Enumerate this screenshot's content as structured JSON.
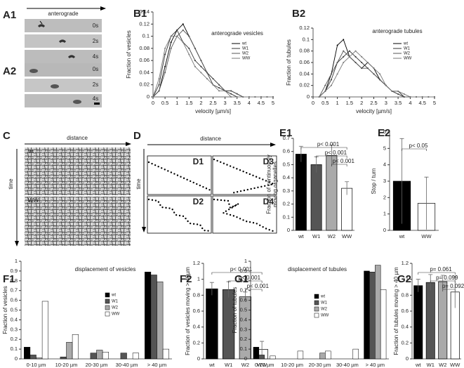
{
  "figure": {
    "panel_labels": [
      "A1",
      "A2",
      "B1",
      "B2",
      "C",
      "D",
      "E1",
      "E2",
      "F1",
      "F2",
      "G1",
      "G2"
    ],
    "a_direction": "anterograde",
    "a1_times": [
      "0s",
      "2s",
      "4s"
    ],
    "a2_times": [
      "0s",
      "2s",
      "4s"
    ],
    "c_x_axis": "distance",
    "c_y_axis": "time",
    "c_rows": [
      "wt",
      "WW"
    ],
    "d_x_axis": "distance",
    "d_y_axis": "time",
    "d_boxes": [
      "D1",
      "D3",
      "D2",
      "D4"
    ]
  },
  "chart_data": [
    {
      "type": "line",
      "title": "anterograde vesicles",
      "xlabel": "velocity [µm/s]",
      "ylabel": [
        "Fraction of vesicles"
      ],
      "x": [
        0,
        0.25,
        0.5,
        0.75,
        1,
        1.25,
        1.5,
        1.75,
        2,
        2.25,
        2.5,
        2.75,
        3,
        3.25,
        3.5,
        3.75,
        4,
        4.25,
        4.5,
        4.75,
        5
      ],
      "series": [
        {
          "name": "wt",
          "color": "#000000",
          "values": [
            0,
            0.01,
            0.05,
            0.09,
            0.11,
            0.12,
            0.1,
            0.08,
            0.06,
            0.04,
            0.03,
            0.02,
            0.01,
            0.01,
            0.005,
            0,
            0,
            0,
            0,
            0,
            0
          ]
        },
        {
          "name": "W1",
          "color": "#333333",
          "values": [
            0,
            0.02,
            0.07,
            0.1,
            0.11,
            0.09,
            0.08,
            0.06,
            0.05,
            0.04,
            0.02,
            0.015,
            0.01,
            0.005,
            0,
            0,
            0,
            0,
            0,
            0,
            0
          ]
        },
        {
          "name": "W2",
          "color": "#555555",
          "values": [
            0,
            0.01,
            0.04,
            0.08,
            0.1,
            0.11,
            0.1,
            0.08,
            0.06,
            0.04,
            0.03,
            0.02,
            0.01,
            0.01,
            0.005,
            0,
            0,
            0,
            0,
            0,
            0
          ]
        },
        {
          "name": "WW",
          "color": "#777777",
          "values": [
            0,
            0.03,
            0.08,
            0.1,
            0.1,
            0.09,
            0.07,
            0.05,
            0.04,
            0.03,
            0.02,
            0.01,
            0.01,
            0,
            0,
            0,
            0,
            0,
            0,
            0,
            0
          ]
        }
      ],
      "xlim": [
        0,
        5
      ],
      "xticks": [
        0,
        0.5,
        1,
        1.5,
        2,
        2.5,
        3,
        3.5,
        4,
        4.5,
        5
      ],
      "ylim": [
        0,
        0.14
      ],
      "yticks": [
        0,
        0.02,
        0.04,
        0.06,
        0.08,
        0.1,
        0.12,
        0.14
      ],
      "legend": true
    },
    {
      "type": "line",
      "title": "anterograde tubules",
      "xlabel": "velocity [µm/s]",
      "ylabel": [
        "Fraction of tubules"
      ],
      "x": [
        0,
        0.25,
        0.5,
        0.75,
        1,
        1.25,
        1.5,
        1.75,
        2,
        2.25,
        2.5,
        2.75,
        3,
        3.25,
        3.5,
        3.75,
        4,
        4.25,
        4.5,
        4.75,
        5
      ],
      "series": [
        {
          "name": "wt",
          "color": "#000000",
          "values": [
            0,
            0,
            0.01,
            0.04,
            0.09,
            0.1,
            0.07,
            0.06,
            0.05,
            0.06,
            0.05,
            0.03,
            0.02,
            0.01,
            0.005,
            0,
            0,
            0,
            0,
            0,
            0
          ]
        },
        {
          "name": "W1",
          "color": "#333333",
          "values": [
            0,
            0,
            0.01,
            0.03,
            0.06,
            0.07,
            0.08,
            0.07,
            0.06,
            0.05,
            0.04,
            0.03,
            0.02,
            0.01,
            0.01,
            0,
            0,
            0,
            0,
            0,
            0
          ]
        },
        {
          "name": "W2",
          "color": "#555555",
          "values": [
            0,
            0,
            0.02,
            0.04,
            0.06,
            0.08,
            0.07,
            0.06,
            0.05,
            0.05,
            0.04,
            0.03,
            0.02,
            0.01,
            0.005,
            0,
            0,
            0,
            0,
            0,
            0
          ]
        },
        {
          "name": "WW",
          "color": "#777777",
          "values": [
            0,
            0,
            0.01,
            0.02,
            0.04,
            0.06,
            0.07,
            0.08,
            0.07,
            0.06,
            0.05,
            0.04,
            0.02,
            0.01,
            0.01,
            0.005,
            0,
            0,
            0,
            0,
            0
          ]
        }
      ],
      "xlim": [
        0,
        5
      ],
      "xticks": [
        0,
        0.5,
        1,
        1.5,
        2,
        2.5,
        3,
        3.5,
        4,
        4.5,
        5
      ],
      "ylim": [
        0,
        0.12
      ],
      "yticks": [
        0,
        0.02,
        0.04,
        0.06,
        0.08,
        0.1,
        0.12
      ],
      "legend": true
    },
    {
      "type": "bar",
      "ylabel": [
        "Fraction of continuously",
        "moving organelles"
      ],
      "categories": [
        "wt",
        "W1",
        "W2",
        "WW"
      ],
      "values": [
        0.58,
        0.5,
        0.57,
        0.32
      ],
      "errors": [
        0.06,
        0.06,
        0.08,
        0.05
      ],
      "colors": [
        "#000000",
        "#555555",
        "#aaaaaa",
        "#ffffff"
      ],
      "ylim": [
        0,
        0.7
      ],
      "yticks": [
        0,
        0.1,
        0.2,
        0.3,
        0.4,
        0.5,
        0.6,
        0.7
      ],
      "annotations": [
        "p< 0.001",
        "p< 0.001",
        "p< 0.001"
      ]
    },
    {
      "type": "bar",
      "ylabel": [
        "Stop / turn"
      ],
      "categories": [
        "wt",
        "WW"
      ],
      "values": [
        3.0,
        1.65
      ],
      "errors": [
        2.6,
        1.6
      ],
      "colors": [
        "#000000",
        "#ffffff"
      ],
      "ylim": [
        0,
        6
      ],
      "yticks": [
        0,
        1,
        2,
        3,
        4,
        5,
        6
      ],
      "annotations": [
        "p< 0.05"
      ]
    },
    {
      "type": "bar",
      "title": "displacement of vesicles",
      "ylabel": [
        "Fraction of vesicles"
      ],
      "categories": [
        "0-10 µm",
        "10-20 µm",
        "20-30 µm",
        "30-40 µm",
        "> 40 µm"
      ],
      "series": [
        {
          "name": "wt",
          "color": "#000000",
          "values": [
            0.12,
            0,
            0,
            0,
            0.89
          ]
        },
        {
          "name": "W1",
          "color": "#555555",
          "values": [
            0.04,
            0.02,
            0.06,
            0.06,
            0.86
          ]
        },
        {
          "name": "W2",
          "color": "#aaaaaa",
          "values": [
            0.01,
            0.17,
            0.09,
            0,
            0.79
          ]
        },
        {
          "name": "WW",
          "color": "#ffffff",
          "values": [
            0.59,
            0.25,
            0.07,
            0.06,
            0.1
          ]
        }
      ],
      "ylim": [
        0,
        1
      ],
      "yticks": [
        0,
        0.1,
        0.2,
        0.3,
        0.4,
        0.5,
        0.6,
        0.7,
        0.8,
        0.9,
        1
      ],
      "legend": true
    },
    {
      "type": "bar",
      "ylabel": [
        "Fraction of vesicles moving > 40µm"
      ],
      "categories": [
        "wt",
        "W1",
        "W2",
        "WW"
      ],
      "values": [
        0.88,
        0.87,
        0.78,
        0.12
      ],
      "errors": [
        0.08,
        0.1,
        0.06,
        0.1
      ],
      "colors": [
        "#000000",
        "#555555",
        "#aaaaaa",
        "#ffffff"
      ],
      "ylim": [
        0,
        1.2
      ],
      "yticks": [
        0,
        0.2,
        0.4,
        0.6,
        0.8,
        1,
        1.2
      ],
      "annotations": [
        "p< 0.001",
        "p< 0.001",
        "p< 0.001"
      ]
    },
    {
      "type": "bar",
      "title": "displacement of tubules",
      "ylabel": [
        "Fraction of tubules"
      ],
      "categories": [
        "0-10 µm",
        "10-20 µm",
        "20-30 µm",
        "30-40 µm",
        "> 40 µm"
      ],
      "series": [
        {
          "name": "wt",
          "color": "#000000",
          "values": [
            0.12,
            0,
            0,
            0,
            0.9
          ]
        },
        {
          "name": "W1",
          "color": "#555555",
          "values": [
            0.04,
            0,
            0,
            0,
            0.89
          ]
        },
        {
          "name": "W2",
          "color": "#aaaaaa",
          "values": [
            0,
            0,
            0.06,
            0,
            0.96
          ]
        },
        {
          "name": "WW",
          "color": "#ffffff",
          "values": [
            0.03,
            0.08,
            0.08,
            0.1,
            0.71
          ]
        }
      ],
      "ylim": [
        0,
        1
      ],
      "yticks": [
        0,
        0.1,
        0.2,
        0.3,
        0.4,
        0.5,
        0.6,
        0.7,
        0.8,
        0.9,
        1
      ],
      "legend": true
    },
    {
      "type": "bar",
      "ylabel": [
        "Fraction of tubules moving > 40 µm"
      ],
      "categories": [
        "wt",
        "W1",
        "W2",
        "WW"
      ],
      "values": [
        0.92,
        0.96,
        0.97,
        0.84
      ],
      "errors": [
        0.08,
        0.1,
        0.08,
        0.2
      ],
      "colors": [
        "#000000",
        "#555555",
        "#aaaaaa",
        "#ffffff"
      ],
      "ylim": [
        0,
        1.2
      ],
      "yticks": [
        0,
        0.2,
        0.4,
        0.6,
        0.8,
        1,
        1.2
      ],
      "annotations": [
        "p= 0.061",
        "p= 0.099",
        "p= 0.092"
      ]
    }
  ]
}
